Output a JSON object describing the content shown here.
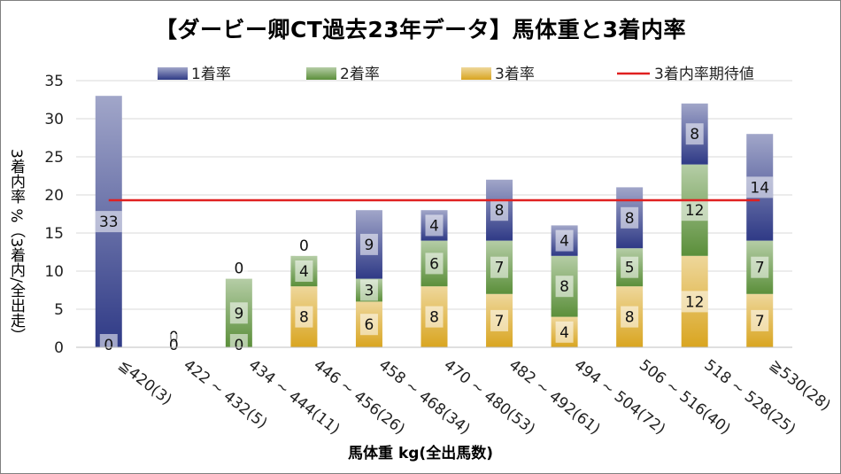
{
  "chart_data": {
    "type": "bar",
    "title": "【ダービー卿CT過去23年データ】馬体重と3着内率",
    "xlabel": "馬体重 kg(全出馬数)",
    "ylabel": "3着内率 %（3着内/全出走）",
    "ylim": [
      0,
      35
    ],
    "yticks": [
      0,
      5,
      10,
      15,
      20,
      25,
      30,
      35
    ],
    "grid": true,
    "legend_position": "top",
    "categories": [
      "≦420(3)",
      "422 ~ 432(5)",
      "434 ~ 444(11)",
      "446 ~ 456(26)",
      "458 ~ 468(34)",
      "470 ~ 480(53)",
      "482 ~ 492(61)",
      "494 ~ 504(72)",
      "506 ~ 516(40)",
      "518 ~ 528(25)",
      "≧530(28)"
    ],
    "series": [
      {
        "name": "3着率",
        "color": "#d9a520",
        "values": [
          0,
          0,
          0,
          8,
          6,
          8,
          7,
          4,
          8,
          12,
          7
        ],
        "labels": [
          "",
          "",
          "0",
          "8",
          "6",
          "8",
          "7",
          "4",
          "8",
          "12",
          "7"
        ]
      },
      {
        "name": "2着率",
        "color": "#5b8f3a",
        "values": [
          0,
          0,
          9,
          4,
          3,
          6,
          7,
          8,
          5,
          12,
          7
        ],
        "labels": [
          "",
          "",
          "9",
          "4",
          "3",
          "6",
          "7",
          "8",
          "5",
          "12",
          "7"
        ]
      },
      {
        "name": "1着率",
        "color": "#2f3a86",
        "values": [
          33,
          0,
          0,
          0,
          9,
          4,
          8,
          4,
          8,
          8,
          14
        ],
        "labels": [
          "33",
          "0",
          "0",
          "0",
          "9",
          "4",
          "8",
          "4",
          "8",
          "8",
          "14"
        ]
      }
    ],
    "bottom_labels": [
      "0",
      "0",
      "",
      "",
      "",
      "",
      "",
      "",
      "",
      "",
      ""
    ],
    "reference_line": {
      "name": "3着内率期待値",
      "value": 19.3,
      "color": "#e02020"
    }
  }
}
